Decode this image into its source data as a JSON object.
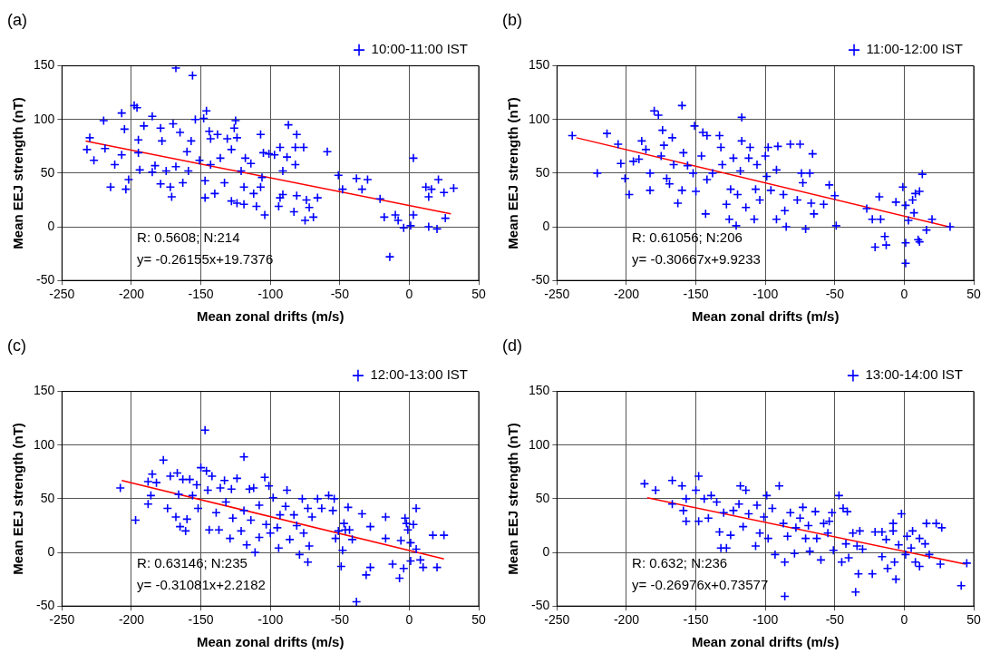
{
  "chart_data": [
    {
      "type": "scatter",
      "title": "(a)",
      "xlabel": "Mean zonal drifts (m/s)",
      "ylabel": "Mean EEJ strength (nT)",
      "xlim": [
        -250,
        50
      ],
      "xticks": [
        -250,
        -200,
        -150,
        -100,
        -50,
        0,
        50
      ],
      "ylim": [
        -50,
        150
      ],
      "yticks": [
        -50,
        0,
        50,
        100,
        150
      ],
      "grid": true,
      "legend": "top right",
      "marker": "cross",
      "annotations": [
        "R: 0.5608; N:214",
        "y= -0.26155x+19.7376"
      ],
      "series": [
        {
          "name": "10:00-11:00 IST",
          "color": "#0000ff",
          "x": [
            -168,
            -156,
            -232,
            -230,
            -227,
            -220,
            -219,
            -215,
            -212,
            -207,
            -205,
            -207,
            -204,
            -202,
            -198,
            -196,
            -195,
            -195,
            -194,
            -191,
            -185,
            -185,
            -183,
            -179,
            -178,
            -179,
            -175,
            -170,
            -172,
            -171,
            -168,
            -165,
            -163,
            -160,
            -157,
            -159,
            -154,
            -151,
            -148,
            -146,
            -147,
            -147,
            -144,
            -143,
            -143,
            -140,
            -138,
            -136,
            -133,
            -131,
            -128,
            -125,
            -126,
            -124,
            -128,
            -124,
            -121,
            -119,
            -119,
            -118,
            -114,
            -112,
            -110,
            -107,
            -106,
            -107,
            -104,
            -105,
            -101,
            -97,
            -93,
            -91,
            -93,
            -91,
            -94,
            -88,
            -87,
            -81,
            -82,
            -82,
            -76,
            -81,
            -83,
            -74,
            -72,
            -75,
            -69,
            -66,
            -59,
            -51,
            -48,
            -38,
            -30,
            -34,
            -21,
            -18,
            -10,
            -8,
            -14,
            -4,
            1,
            3,
            3,
            12,
            14,
            16,
            14,
            21,
            20,
            25,
            32,
            26
          ],
          "values": [
            148,
            141,
            72,
            83,
            62,
            99,
            73,
            37,
            58,
            106,
            91,
            67,
            35,
            44,
            113,
            111,
            81,
            69,
            53,
            94,
            103,
            51,
            57,
            92,
            80,
            40,
            52,
            96,
            37,
            28,
            56,
            88,
            41,
            70,
            80,
            52,
            100,
            62,
            101,
            108,
            27,
            43,
            89,
            82,
            58,
            31,
            86,
            64,
            41,
            82,
            72,
            99,
            92,
            83,
            24,
            22,
            52,
            21,
            37,
            64,
            59,
            31,
            19,
            86,
            46,
            37,
            11,
            69,
            68,
            67,
            74,
            52,
            27,
            30,
            19,
            65,
            95,
            86,
            58,
            74,
            74,
            29,
            14,
            25,
            18,
            6,
            9,
            27,
            70,
            48,
            35,
            45,
            44,
            35,
            26,
            9,
            11,
            6,
            -28,
            -1,
            1,
            64,
            11,
            37,
            28,
            35,
            0,
            44,
            -2,
            32,
            36,
            8
          ]
        },
        {
          "type": "line",
          "color": "#ff0000",
          "marker": "none",
          "x": [
            -233,
            30
          ],
          "values": [
            80,
            12
          ]
        }
      ]
    },
    {
      "type": "scatter",
      "title": "(b)",
      "xlabel": "Mean zonal drifts (m/s)",
      "ylabel": "Mean EEJ strength (nT)",
      "xlim": [
        -250,
        50
      ],
      "xticks": [
        -250,
        -200,
        -150,
        -100,
        -50,
        0,
        50
      ],
      "ylim": [
        -50,
        150
      ],
      "yticks": [
        -50,
        0,
        50,
        100,
        150
      ],
      "grid": true,
      "legend": "top right",
      "marker": "cross",
      "annotations": [
        "R: 0.61056; N:206",
        "y= -0.30667x+9.9233"
      ],
      "series": [
        {
          "name": "11:00-12:00 IST",
          "color": "#0000ff",
          "x": [
            -239,
            -221,
            -214,
            -206,
            -204,
            -201,
            -198,
            -195,
            -189,
            -191,
            -186,
            -183,
            -183,
            -180,
            -177,
            -174,
            -175,
            -173,
            -171,
            -169,
            -167,
            -166,
            -163,
            -160,
            -159,
            -160,
            -156,
            -152,
            -151,
            -150,
            -146,
            -145,
            -142,
            -142,
            -143,
            -138,
            -133,
            -132,
            -131,
            -128,
            -125,
            -126,
            -123,
            -121,
            -120,
            -117,
            -117,
            -118,
            -114,
            -112,
            -111,
            -108,
            -107,
            -106,
            -104,
            -100,
            -99,
            -98,
            -96,
            -92,
            -91,
            -92,
            -87,
            -86,
            -85,
            -82,
            -77,
            -75,
            -74,
            -73,
            -71,
            -68,
            -67,
            -66,
            -65,
            -58,
            -54,
            -50,
            -49,
            -27,
            -23,
            -18,
            -17,
            -14,
            -21,
            -13,
            -6,
            -1,
            1,
            1,
            1,
            3,
            6,
            7,
            8,
            11,
            10,
            13,
            11,
            16,
            20,
            33
          ],
          "values": [
            85,
            50,
            87,
            77,
            59,
            45,
            30,
            61,
            80,
            63,
            72,
            50,
            34,
            108,
            104,
            90,
            66,
            76,
            45,
            40,
            83,
            58,
            22,
            113,
            69,
            34,
            57,
            50,
            94,
            33,
            66,
            88,
            85,
            44,
            12,
            50,
            85,
            74,
            58,
            21,
            35,
            7,
            64,
            1,
            30,
            102,
            80,
            52,
            18,
            64,
            74,
            7,
            35,
            58,
            25,
            66,
            47,
            74,
            34,
            53,
            75,
            7,
            30,
            15,
            0,
            77,
            25,
            77,
            50,
            41,
            -2,
            50,
            22,
            68,
            12,
            21,
            39,
            29,
            1,
            17,
            7,
            28,
            7,
            -9,
            -19,
            -17,
            23,
            37,
            20,
            -15,
            -34,
            6,
            25,
            13,
            31,
            33,
            -12,
            49,
            -14,
            -3,
            7,
            0
          ]
        },
        {
          "type": "line",
          "color": "#ff0000",
          "marker": "none",
          "x": [
            -236,
            32
          ],
          "values": [
            83,
            0
          ]
        }
      ]
    },
    {
      "type": "scatter",
      "title": "(c)",
      "xlabel": "Mean zonal drifts (m/s)",
      "ylabel": "Mean EEJ strength (nT)",
      "xlim": [
        -250,
        50
      ],
      "xticks": [
        -250,
        -200,
        -150,
        -100,
        -50,
        0,
        50
      ],
      "ylim": [
        -50,
        150
      ],
      "yticks": [
        -50,
        0,
        50,
        100,
        150
      ],
      "grid": true,
      "legend": "top right",
      "marker": "cross",
      "annotations": [
        "R: 0.63146; N:235",
        "y= -0.31081x+2.2182"
      ],
      "series": [
        {
          "name": "12:00-13:00 IST",
          "color": "#0000ff",
          "x": [
            -208,
            -197,
            -188,
            -188,
            -186,
            -185,
            -182,
            -177,
            -174,
            -172,
            -167,
            -168,
            -166,
            -165,
            -161,
            -163,
            -160,
            -158,
            -156,
            -153,
            -152,
            -150,
            -147,
            -146,
            -145,
            -144,
            -142,
            -139,
            -137,
            -136,
            -133,
            -132,
            -129,
            -128,
            -127,
            -124,
            -121,
            -119,
            -119,
            -117,
            -115,
            -114,
            -112,
            -111,
            -108,
            -108,
            -104,
            -103,
            -101,
            -100,
            -98,
            -95,
            -94,
            -93,
            -89,
            -88,
            -86,
            -83,
            -81,
            -79,
            -77,
            -76,
            -73,
            -72,
            -73,
            -70,
            -66,
            -63,
            -58,
            -54,
            -55,
            -53,
            -51,
            -49,
            -48,
            -47,
            -43,
            -46,
            -41,
            -44,
            -38,
            -34,
            -31,
            -28,
            -28,
            -17,
            -17,
            -12,
            -6,
            -7,
            -4,
            -3,
            -2,
            -1,
            1,
            1,
            3,
            5,
            5,
            8,
            10,
            17,
            20,
            25
          ],
          "values": [
            60,
            30,
            45,
            66,
            53,
            73,
            65,
            86,
            41,
            71,
            74,
            33,
            54,
            24,
            20,
            68,
            31,
            68,
            53,
            63,
            41,
            79,
            114,
            76,
            58,
            21,
            71,
            37,
            21,
            60,
            67,
            47,
            13,
            59,
            32,
            69,
            20,
            89,
            39,
            7,
            59,
            30,
            60,
            0,
            44,
            14,
            70,
            26,
            62,
            18,
            51,
            23,
            4,
            35,
            43,
            58,
            12,
            35,
            25,
            -2,
            50,
            18,
            41,
            6,
            -9,
            33,
            50,
            41,
            53,
            50,
            39,
            13,
            20,
            -13,
            2,
            27,
            21,
            21,
            12,
            42,
            -46,
            36,
            -21,
            24,
            -14,
            33,
            13,
            -11,
            11,
            -24,
            -15,
            32,
            27,
            21,
            -8,
            9,
            26,
            41,
            3,
            -7,
            -14,
            16,
            -14,
            16
          ]
        },
        {
          "type": "line",
          "color": "#ff0000",
          "marker": "none",
          "x": [
            -207,
            25
          ],
          "values": [
            67,
            -6
          ]
        }
      ]
    },
    {
      "type": "scatter",
      "title": "(d)",
      "xlabel": "Mean zonal drifts (m/s)",
      "ylabel": "Mean EEJ strength (nT)",
      "xlim": [
        -250,
        50
      ],
      "xticks": [
        -250,
        -200,
        -150,
        -100,
        -50,
        0,
        50
      ],
      "ylim": [
        -50,
        150
      ],
      "yticks": [
        -50,
        0,
        50,
        100,
        150
      ],
      "grid": true,
      "legend": "top right",
      "marker": "cross",
      "annotations": [
        "R: 0.632; N:236",
        "y= -0.26976x+0.73577"
      ],
      "series": [
        {
          "name": "13:00-14:00 IST",
          "color": "#0000ff",
          "x": [
            -187,
            -179,
            -167,
            -167,
            -160,
            -159,
            -157,
            -157,
            -148,
            -150,
            -148,
            -144,
            -139,
            -141,
            -135,
            -133,
            -132,
            -128,
            -130,
            -125,
            -123,
            -118,
            -114,
            -119,
            -116,
            -112,
            -107,
            -106,
            -104,
            -101,
            -99,
            -98,
            -95,
            -93,
            -90,
            -87,
            -86,
            -86,
            -84,
            -82,
            -79,
            -78,
            -75,
            -73,
            -71,
            -69,
            -68,
            -64,
            -63,
            -60,
            -58,
            -55,
            -54,
            -52,
            -51,
            -47,
            -45,
            -44,
            -41,
            -42,
            -40,
            -37,
            -35,
            -34,
            -33,
            -32,
            -30,
            -23,
            -21,
            -16,
            -16,
            -13,
            -12,
            -8,
            -8,
            -7,
            -6,
            -4,
            -2,
            1,
            2,
            6,
            5,
            8,
            11,
            11,
            15,
            16,
            18,
            23,
            27,
            26,
            41,
            45
          ],
          "values": [
            64,
            58,
            67,
            45,
            62,
            39,
            29,
            50,
            71,
            58,
            29,
            50,
            53,
            32,
            47,
            19,
            4,
            4,
            37,
            16,
            39,
            62,
            58,
            45,
            24,
            36,
            6,
            44,
            18,
            33,
            53,
            13,
            41,
            -2,
            62,
            27,
            -9,
            -41,
            15,
            37,
            -1,
            23,
            32,
            42,
            13,
            25,
            1,
            38,
            13,
            -7,
            27,
            18,
            29,
            37,
            2,
            53,
            -9,
            41,
            38,
            8,
            -5,
            18,
            -37,
            6,
            -20,
            20,
            3,
            -20,
            19,
            19,
            -4,
            12,
            -15,
            27,
            20,
            -9,
            -25,
            7,
            36,
            -2,
            15,
            20,
            4,
            -9,
            -13,
            13,
            8,
            27,
            -2,
            27,
            23,
            -11,
            -31,
            -10
          ]
        },
        {
          "type": "line",
          "color": "#ff0000",
          "marker": "none",
          "x": [
            -185,
            44
          ],
          "values": [
            51,
            -11
          ]
        }
      ]
    }
  ]
}
